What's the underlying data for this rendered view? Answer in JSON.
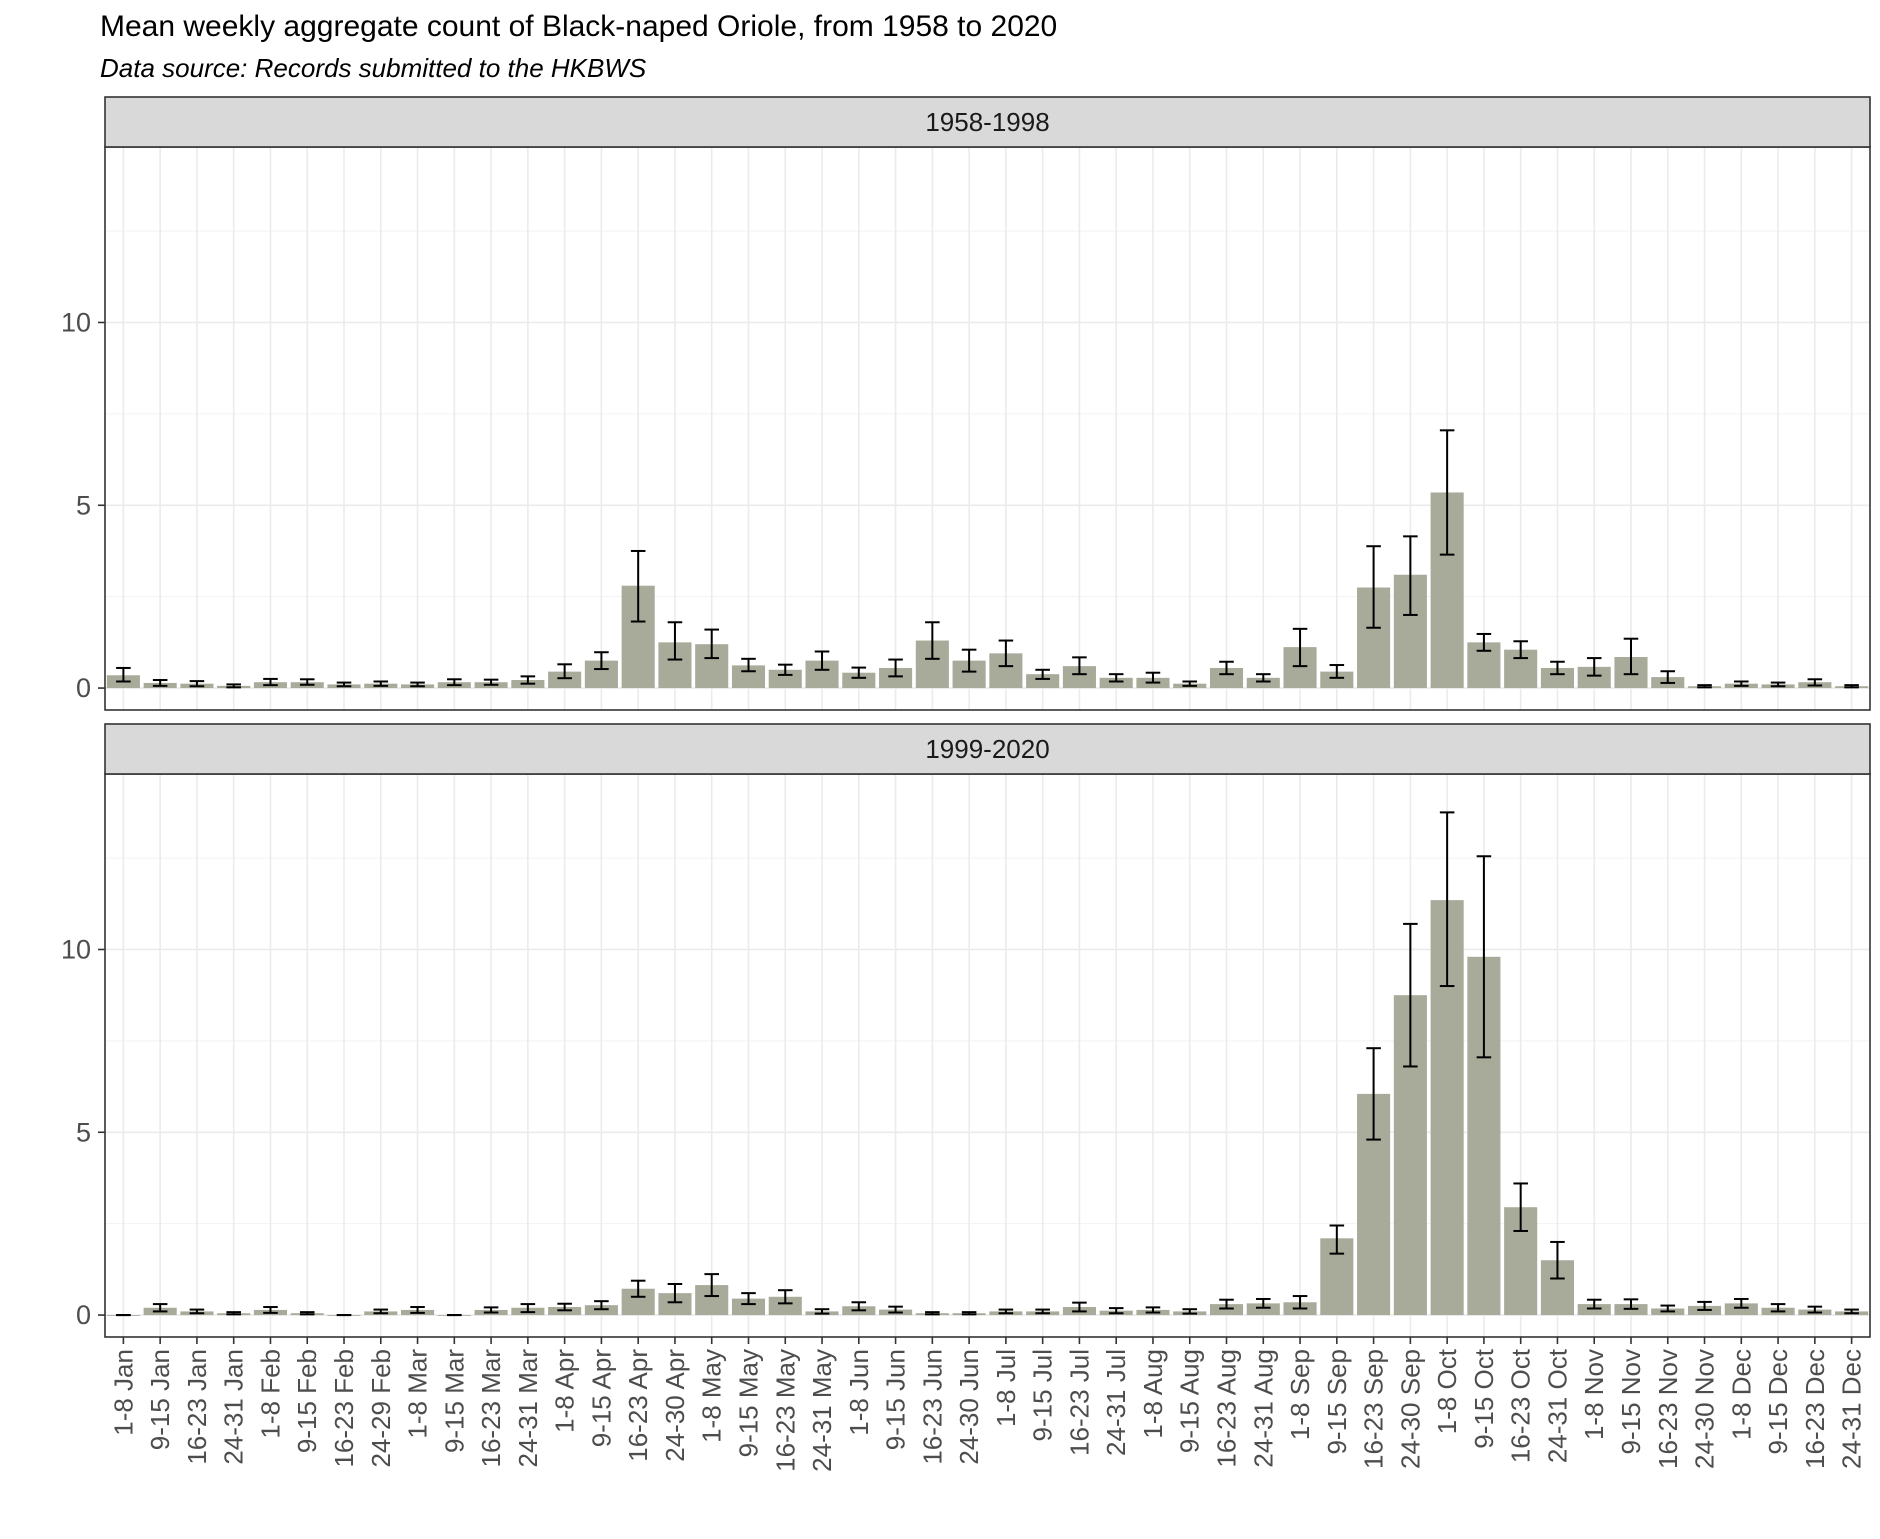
{
  "chart_data": {
    "type": "bar",
    "title": "Mean weekly aggregate count of Black-naped Oriole, from 1958 to 2020",
    "subtitle": "Data source: Records submitted to the HKBWS",
    "xlabel": "",
    "ylabel": "",
    "ylim": [
      -0.6,
      14.8
    ],
    "yticks": [
      0,
      5,
      10
    ],
    "grid": true,
    "error_bars": true,
    "colors": {
      "bar": "#a8aa9a",
      "panel_strip": "#d9d9d9",
      "grid": "#ebebeb",
      "error_bar": "#000000"
    },
    "categories": [
      "1-8 Jan",
      "9-15 Jan",
      "16-23 Jan",
      "24-31 Jan",
      "1-8 Feb",
      "9-15 Feb",
      "16-23 Feb",
      "24-29 Feb",
      "1-8 Mar",
      "9-15 Mar",
      "16-23 Mar",
      "24-31 Mar",
      "1-8 Apr",
      "9-15 Apr",
      "16-23 Apr",
      "24-30 Apr",
      "1-8 May",
      "9-15 May",
      "16-23 May",
      "24-31 May",
      "1-8 Jun",
      "9-15 Jun",
      "16-23 Jun",
      "24-30 Jun",
      "1-8 Jul",
      "9-15 Jul",
      "16-23 Jul",
      "24-31 Jul",
      "1-8 Aug",
      "9-15 Aug",
      "16-23 Aug",
      "24-31 Aug",
      "1-8 Sep",
      "9-15 Sep",
      "16-23 Sep",
      "24-30 Sep",
      "1-8 Oct",
      "9-15 Oct",
      "16-23 Oct",
      "24-31 Oct",
      "1-8 Nov",
      "9-15 Nov",
      "16-23 Nov",
      "24-30 Nov",
      "1-8 Dec",
      "9-15 Dec",
      "16-23 Dec",
      "24-31 Dec"
    ],
    "panels": [
      {
        "strip_label": "1958-1998",
        "values": [
          0.35,
          0.14,
          0.12,
          0.06,
          0.16,
          0.16,
          0.1,
          0.12,
          0.1,
          0.16,
          0.16,
          0.22,
          0.45,
          0.75,
          2.8,
          1.25,
          1.2,
          0.62,
          0.5,
          0.75,
          0.42,
          0.55,
          1.3,
          0.75,
          0.95,
          0.38,
          0.6,
          0.28,
          0.28,
          0.12,
          0.55,
          0.28,
          1.12,
          0.45,
          2.75,
          3.1,
          5.35,
          1.25,
          1.05,
          0.55,
          0.58,
          0.85,
          0.3,
          0.05,
          0.12,
          0.1,
          0.16,
          0.05
        ],
        "err_low": [
          0.18,
          0.06,
          0.05,
          0.02,
          0.08,
          0.09,
          0.05,
          0.06,
          0.05,
          0.08,
          0.09,
          0.12,
          0.27,
          0.52,
          1.82,
          0.78,
          0.82,
          0.46,
          0.36,
          0.5,
          0.28,
          0.32,
          0.8,
          0.45,
          0.6,
          0.25,
          0.38,
          0.18,
          0.15,
          0.06,
          0.38,
          0.18,
          0.6,
          0.28,
          1.65,
          2.0,
          3.65,
          1.02,
          0.82,
          0.38,
          0.34,
          0.38,
          0.14,
          0.02,
          0.06,
          0.05,
          0.07,
          0.02
        ],
        "err_high": [
          0.55,
          0.22,
          0.19,
          0.1,
          0.25,
          0.24,
          0.15,
          0.18,
          0.15,
          0.24,
          0.23,
          0.32,
          0.65,
          0.98,
          3.75,
          1.8,
          1.6,
          0.8,
          0.64,
          1.0,
          0.56,
          0.78,
          1.8,
          1.05,
          1.3,
          0.5,
          0.84,
          0.38,
          0.42,
          0.18,
          0.72,
          0.38,
          1.62,
          0.63,
          3.88,
          4.15,
          7.05,
          1.48,
          1.28,
          0.72,
          0.82,
          1.35,
          0.46,
          0.08,
          0.18,
          0.15,
          0.24,
          0.08
        ]
      },
      {
        "strip_label": "1999-2020",
        "values": [
          0.0,
          0.2,
          0.1,
          0.05,
          0.14,
          0.05,
          0.0,
          0.1,
          0.14,
          0.0,
          0.14,
          0.2,
          0.22,
          0.27,
          0.72,
          0.6,
          0.82,
          0.45,
          0.5,
          0.1,
          0.24,
          0.15,
          0.05,
          0.05,
          0.1,
          0.1,
          0.22,
          0.12,
          0.14,
          0.1,
          0.3,
          0.32,
          0.35,
          2.1,
          6.05,
          8.75,
          11.35,
          9.8,
          2.95,
          1.5,
          0.3,
          0.3,
          0.18,
          0.25,
          0.32,
          0.2,
          0.15,
          0.1
        ],
        "err_low": [
          0.0,
          0.1,
          0.05,
          0.02,
          0.06,
          0.02,
          0.0,
          0.05,
          0.06,
          0.0,
          0.07,
          0.08,
          0.13,
          0.16,
          0.5,
          0.35,
          0.52,
          0.3,
          0.32,
          0.04,
          0.13,
          0.07,
          0.02,
          0.02,
          0.05,
          0.05,
          0.1,
          0.05,
          0.07,
          0.04,
          0.18,
          0.2,
          0.18,
          1.68,
          4.8,
          6.8,
          9.0,
          7.05,
          2.3,
          1.0,
          0.18,
          0.17,
          0.1,
          0.14,
          0.2,
          0.1,
          0.07,
          0.05
        ],
        "err_high": [
          0.0,
          0.3,
          0.15,
          0.08,
          0.22,
          0.08,
          0.0,
          0.15,
          0.22,
          0.0,
          0.21,
          0.3,
          0.31,
          0.38,
          0.94,
          0.85,
          1.12,
          0.6,
          0.68,
          0.16,
          0.35,
          0.23,
          0.08,
          0.08,
          0.15,
          0.15,
          0.34,
          0.19,
          0.21,
          0.16,
          0.42,
          0.44,
          0.52,
          2.45,
          7.3,
          10.7,
          13.75,
          12.55,
          3.6,
          2.0,
          0.42,
          0.43,
          0.26,
          0.36,
          0.44,
          0.3,
          0.23,
          0.15
        ]
      }
    ]
  }
}
